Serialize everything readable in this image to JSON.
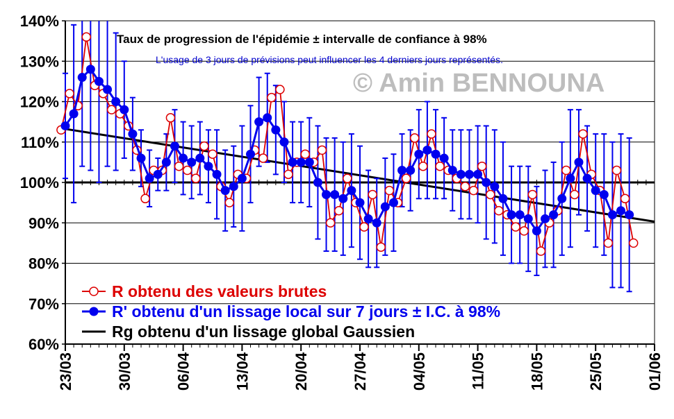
{
  "chart_data": {
    "type": "line",
    "title": "Taux de progression de l'épidémie ± intervalle de confiance à 98%",
    "subtitle": "L'usage de 3 jours de prévisions peut influencer les 4 derniers jours représentés.",
    "watermark": "© Amin BENNOUNA",
    "ylim": [
      60,
      140
    ],
    "yticks": [
      "140%",
      "130%",
      "120%",
      "110%",
      "100%",
      "90%",
      "80%",
      "70%",
      "60%"
    ],
    "ytick_values": [
      140,
      130,
      120,
      110,
      100,
      90,
      80,
      70,
      60
    ],
    "xlim": [
      0,
      70
    ],
    "xticks": [
      "23/03",
      "30/03",
      "06/04",
      "13/04",
      "20/04",
      "27/04",
      "04/05",
      "11/05",
      "18/05",
      "25/05",
      "01/06"
    ],
    "xtick_values": [
      0,
      7,
      14,
      21,
      28,
      35,
      42,
      49,
      56,
      63,
      70
    ],
    "reference_line": 100,
    "legend_placement": "bottom-left",
    "colors": {
      "raw": "#dd0000",
      "local": "#0000ee",
      "global": "#000000",
      "watermark": "#bdbdbd"
    },
    "series": [
      {
        "name": "R obtenu des valeurs brutes",
        "values": [
          113,
          122,
          119,
          136,
          124,
          122,
          118,
          117,
          114,
          108,
          96,
          103,
          103,
          116,
          104,
          103,
          101,
          109,
          107,
          99,
          95,
          102,
          101,
          108,
          106,
          121,
          123,
          102,
          105,
          107,
          105,
          108,
          90,
          93,
          101,
          95,
          89,
          97,
          84,
          98,
          95,
          101,
          111,
          104,
          112,
          104,
          103,
          101,
          99,
          98,
          104,
          97,
          93,
          92,
          89,
          88,
          97,
          83,
          90,
          93,
          103,
          97,
          112,
          102,
          98,
          85,
          103,
          96,
          85
        ]
      },
      {
        "name": "R' obtenu d'un lissage local sur 7 jours ± I.C. à 98%",
        "values": [
          114,
          117,
          126,
          128,
          125,
          123,
          120,
          118,
          112,
          106,
          101,
          102,
          105,
          109,
          106,
          105,
          106,
          104,
          102,
          98,
          99,
          101,
          107,
          115,
          116,
          113,
          110,
          105,
          105,
          105,
          100,
          97,
          97,
          96,
          98,
          95,
          91,
          90,
          94,
          95,
          103,
          103,
          107,
          108,
          107,
          106,
          103,
          102,
          102,
          102,
          100,
          99,
          96,
          92,
          92,
          91,
          88,
          91,
          92,
          96,
          101,
          105,
          101,
          98,
          97,
          92,
          93,
          92
        ],
        "ci_low": [
          101,
          95,
          104,
          103,
          100,
          104,
          103,
          106,
          103,
          99,
          94,
          98,
          98,
          100,
          97,
          96,
          97,
          95,
          91,
          88,
          89,
          88,
          95,
          104,
          105,
          102,
          100,
          95,
          95,
          94,
          86,
          83,
          83,
          82,
          84,
          81,
          79,
          79,
          82,
          83,
          94,
          93,
          96,
          96,
          96,
          96,
          93,
          91,
          91,
          90,
          86,
          85,
          82,
          80,
          80,
          78,
          77,
          79,
          79,
          82,
          84,
          92,
          88,
          84,
          82,
          74,
          74,
          73
        ],
        "ci_high": [
          127,
          139,
          147,
          153,
          150,
          142,
          137,
          130,
          121,
          113,
          108,
          106,
          112,
          118,
          115,
          114,
          115,
          113,
          113,
          108,
          109,
          114,
          119,
          126,
          127,
          124,
          120,
          115,
          115,
          116,
          114,
          111,
          111,
          110,
          112,
          109,
          103,
          101,
          106,
          107,
          112,
          113,
          118,
          120,
          118,
          116,
          113,
          113,
          113,
          114,
          114,
          113,
          110,
          104,
          104,
          104,
          99,
          103,
          105,
          110,
          118,
          118,
          114,
          112,
          112,
          110,
          112,
          111
        ]
      },
      {
        "name": "Rg obtenu d'un lissage global Gaussien",
        "x": [
          -0.5,
          70
        ],
        "values": [
          113.4,
          90.3
        ]
      }
    ]
  }
}
